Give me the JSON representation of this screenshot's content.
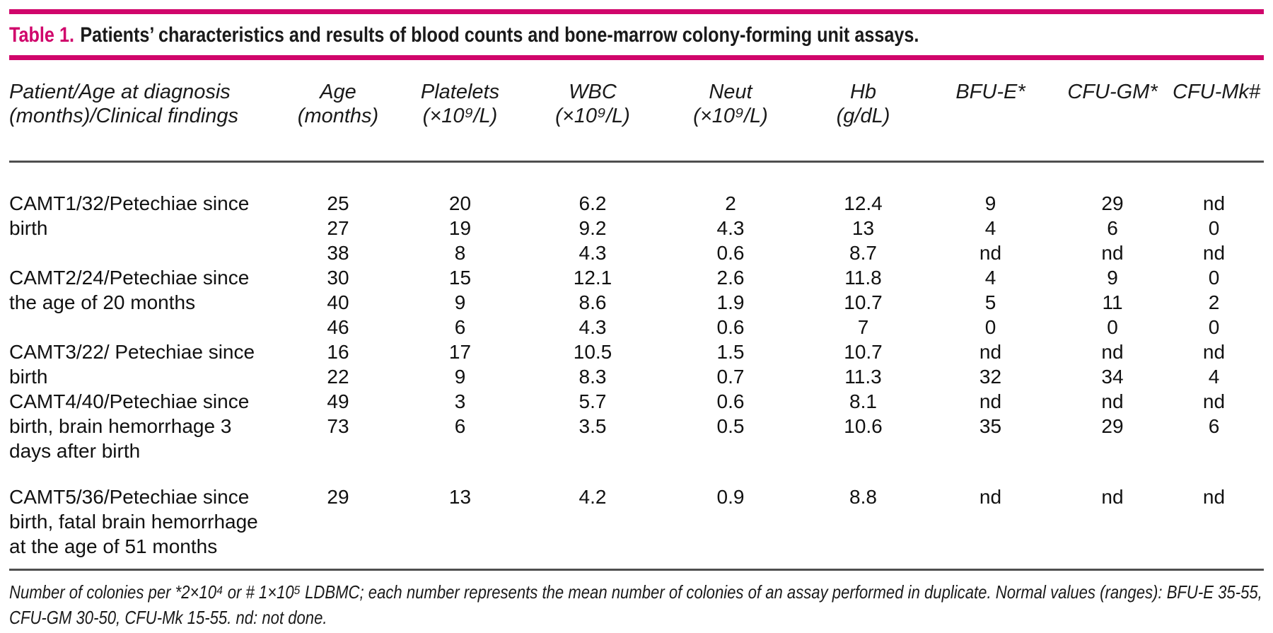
{
  "colors": {
    "accent": "#d0056b",
    "rule": "#4f4f4f",
    "text": "#1a1a1a",
    "background": "#ffffff"
  },
  "title": {
    "label": "Table 1.",
    "text": "Patients’ characteristics and results of blood counts and bone-marrow colony-forming unit assays."
  },
  "table": {
    "columns": [
      {
        "line1": "Patient/Age at diagnosis",
        "line2": "(months)/Clinical findings"
      },
      {
        "line1": "Age",
        "line2": "(months)"
      },
      {
        "line1": "Platelets",
        "line2": "(×10⁹/L)"
      },
      {
        "line1": "WBC",
        "line2": "(×10⁹/L)"
      },
      {
        "line1": "Neut",
        "line2": "(×10⁹/L)"
      },
      {
        "line1": "Hb",
        "line2": "(g/dL)"
      },
      {
        "line1": "BFU-E*",
        "line2": ""
      },
      {
        "line1": "CFU-GM*",
        "line2": ""
      },
      {
        "line1": "CFU-Mk#",
        "line2": ""
      }
    ],
    "rows": [
      {
        "cells": [
          "CAMT1/32/Petechiae since",
          "25",
          "20",
          "6.2",
          "2",
          "12.4",
          "9",
          "29",
          "nd"
        ]
      },
      {
        "cells": [
          "birth",
          "27",
          "19",
          "9.2",
          "4.3",
          "13",
          "4",
          "6",
          "0"
        ]
      },
      {
        "cells": [
          "",
          "38",
          "8",
          "4.3",
          "0.6",
          "8.7",
          "nd",
          "nd",
          "nd"
        ]
      },
      {
        "cells": [
          "CAMT2/24/Petechiae since",
          "30",
          "15",
          "12.1",
          "2.6",
          "11.8",
          "4",
          "9",
          "0"
        ]
      },
      {
        "cells": [
          "the age of 20 months",
          "40",
          "9",
          "8.6",
          "1.9",
          "10.7",
          "5",
          "11",
          "2"
        ]
      },
      {
        "cells": [
          "",
          "46",
          "6",
          "4.3",
          "0.6",
          "7",
          "0",
          "0",
          "0"
        ]
      },
      {
        "cells": [
          "CAMT3/22/ Petechiae since",
          "16",
          "17",
          "10.5",
          "1.5",
          "10.7",
          "nd",
          "nd",
          "nd"
        ]
      },
      {
        "cells": [
          "birth",
          "22",
          "9",
          "8.3",
          "0.7",
          "11.3",
          "32",
          "34",
          "4"
        ]
      },
      {
        "cells": [
          "CAMT4/40/Petechiae since",
          "49",
          "3",
          "5.7",
          "0.6",
          "8.1",
          "nd",
          "nd",
          "nd"
        ]
      },
      {
        "cells": [
          "birth, brain hemorrhage 3",
          "73",
          "6",
          "3.5",
          "0.5",
          "10.6",
          "35",
          "29",
          "6"
        ]
      },
      {
        "cells": [
          "days after birth",
          "",
          "",
          "",
          "",
          "",
          "",
          "",
          ""
        ]
      },
      {
        "gap_before": true,
        "cells": [
          "CAMT5/36/Petechiae since",
          "29",
          "13",
          "4.2",
          "0.9",
          "8.8",
          "nd",
          "nd",
          "nd"
        ]
      },
      {
        "cells": [
          "birth, fatal brain hemorrhage",
          "",
          "",
          "",
          "",
          "",
          "",
          "",
          ""
        ]
      },
      {
        "cells": [
          "at the age of 51 months",
          "",
          "",
          "",
          "",
          "",
          "",
          "",
          ""
        ]
      }
    ]
  },
  "footnote": {
    "line1": "Number of colonies per *2×10⁴ or # 1×10⁵ LDBMC; each number represents the mean number of colonies of an assay performed in duplicate. Normal values (ranges): BFU-E 35-55,",
    "line2": "CFU-GM 30-50, CFU-Mk 15-55. nd: not done."
  }
}
